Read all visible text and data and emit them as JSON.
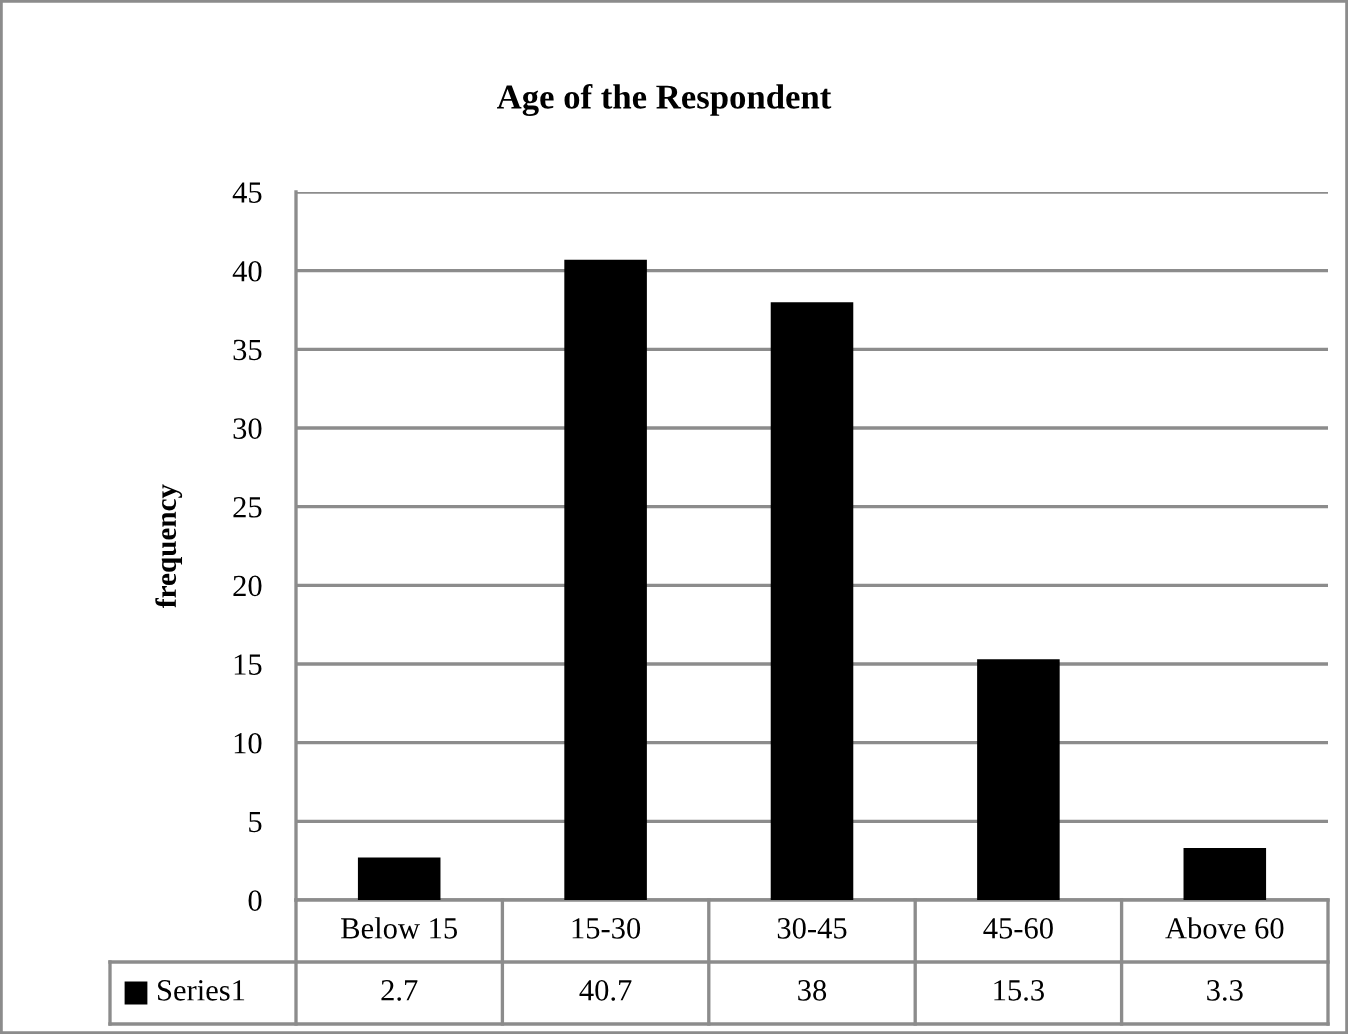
{
  "chart_data": {
    "type": "bar",
    "title": "Age of the Respondent",
    "ylabel": "frequency",
    "categories": [
      "Below 15",
      "15-30",
      "30-45",
      "45-60",
      "Above 60"
    ],
    "series": [
      {
        "name": "Series1",
        "color": "#000000",
        "values": [
          2.7,
          40.7,
          38,
          15.3,
          3.3
        ]
      }
    ],
    "ylim": [
      0,
      45
    ],
    "yticks": [
      0,
      5,
      10,
      15,
      20,
      25,
      30,
      35,
      40,
      45
    ],
    "grid": "y",
    "data_labels": true
  }
}
